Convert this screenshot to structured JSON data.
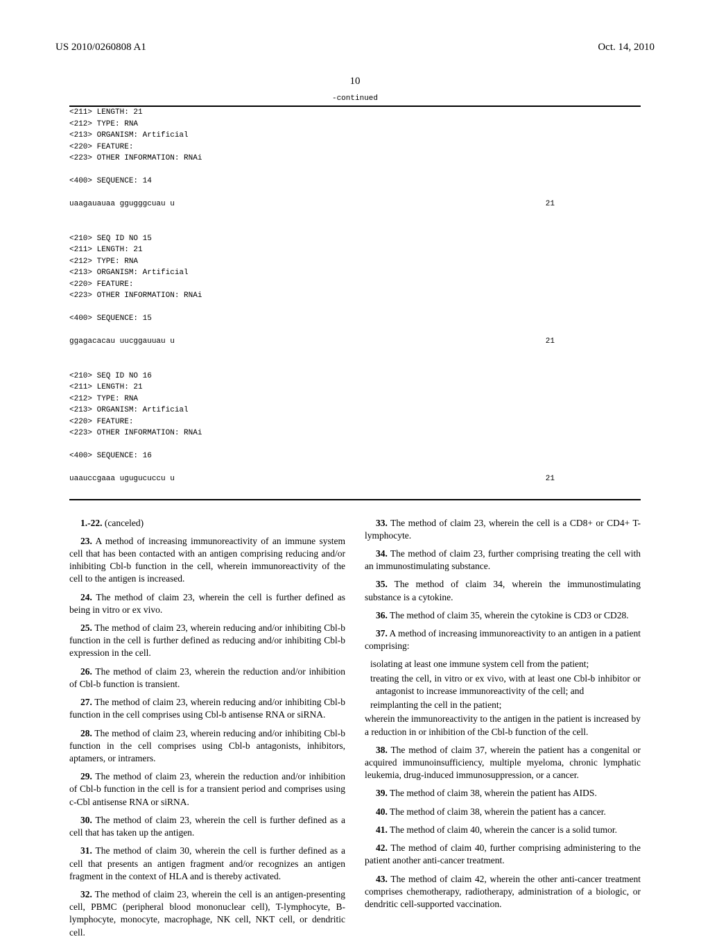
{
  "header": {
    "docnum": "US 2010/0260808 A1",
    "date": "Oct. 14, 2010"
  },
  "page_number": "10",
  "continued_label": "-continued",
  "sequences": [
    {
      "meta": [
        "<211> LENGTH: 21",
        "<212> TYPE: RNA",
        "<213> ORGANISM: Artificial",
        "<220> FEATURE:",
        "<223> OTHER INFORMATION: RNAi"
      ],
      "seq_header": "<400> SEQUENCE: 14",
      "seq_text": "uaagauauaa ggugggcuau u",
      "seq_len": "21"
    },
    {
      "meta": [
        "<210> SEQ ID NO 15",
        "<211> LENGTH: 21",
        "<212> TYPE: RNA",
        "<213> ORGANISM: Artificial",
        "<220> FEATURE:",
        "<223> OTHER INFORMATION: RNAi"
      ],
      "seq_header": "<400> SEQUENCE: 15",
      "seq_text": "ggagacacau uucggauuau u",
      "seq_len": "21"
    },
    {
      "meta": [
        "<210> SEQ ID NO 16",
        "<211> LENGTH: 21",
        "<212> TYPE: RNA",
        "<213> ORGANISM: Artificial",
        "<220> FEATURE:",
        "<223> OTHER INFORMATION: RNAi"
      ],
      "seq_header": "<400> SEQUENCE: 16",
      "seq_text": "uaauccgaaa ugugucuccu u",
      "seq_len": "21"
    }
  ],
  "claims": {
    "c1": {
      "num": "1.-22.",
      "text": "(canceled)"
    },
    "c23": {
      "num": "23.",
      "text": "A method of increasing immunoreactivity of an immune system cell that has been contacted with an antigen comprising reducing and/or inhibiting Cbl-b function in the cell, wherein immunoreactivity of the cell to the antigen is increased."
    },
    "c24": {
      "num": "24.",
      "text": "The method of claim 23, wherein the cell is further defined as being in vitro or ex vivo."
    },
    "c25": {
      "num": "25.",
      "text": "The method of claim 23, wherein reducing and/or inhibiting Cbl-b function in the cell is further defined as reducing and/or inhibiting Cbl-b expression in the cell."
    },
    "c26": {
      "num": "26.",
      "text": "The method of claim 23, wherein the reduction and/or inhibition of Cbl-b function is transient."
    },
    "c27": {
      "num": "27.",
      "text": "The method of claim 23, wherein reducing and/or inhibiting Cbl-b function in the cell comprises using Cbl-b antisense RNA or siRNA."
    },
    "c28": {
      "num": "28.",
      "text": "The method of claim 23, wherein reducing and/or inhibiting Cbl-b function in the cell comprises using Cbl-b antagonists, inhibitors, aptamers, or intramers."
    },
    "c29": {
      "num": "29.",
      "text": "The method of claim 23, wherein the reduction and/or inhibition of Cbl-b function in the cell is for a transient period and comprises using c-Cbl antisense RNA or siRNA."
    },
    "c30": {
      "num": "30.",
      "text": "The method of claim 23, wherein the cell is further defined as a cell that has taken up the antigen."
    },
    "c31": {
      "num": "31.",
      "text": "The method of claim 30, wherein the cell is further defined as a cell that presents an antigen fragment and/or recognizes an antigen fragment in the context of HLA and is thereby activated."
    },
    "c32": {
      "num": "32.",
      "text": "The method of claim 23, wherein the cell is an antigen-presenting cell, PBMC (peripheral blood mononuclear cell), T-lymphocyte, B-lymphocyte, monocyte, macrophage, NK cell, NKT cell, or dendritic cell."
    },
    "c33": {
      "num": "33.",
      "text": "The method of claim 23, wherein the cell is a CD8+ or CD4+ T-lymphocyte."
    },
    "c34": {
      "num": "34.",
      "text": "The method of claim 23, further comprising treating the cell with an immunostimulating substance."
    },
    "c35": {
      "num": "35.",
      "text": "The method of claim 34, wherein the immunostimulating substance is a cytokine."
    },
    "c36": {
      "num": "36.",
      "text": "The method of claim 35, wherein the cytokine is CD3 or CD28."
    },
    "c37": {
      "num": "37.",
      "intro": "A method of increasing immunoreactivity to an antigen in a patient comprising:",
      "sub1": "isolating at least one immune system cell from the patient;",
      "sub2": "treating the cell, in vitro or ex vivo, with at least one Cbl-b inhibitor or antagonist to increase immunoreactivity of the cell; and",
      "sub3": "reimplanting the cell in the patient;",
      "tail": "wherein the immunoreactivity to the antigen in the patient is increased by a reduction in or inhibition of the Cbl-b function of the cell."
    },
    "c38": {
      "num": "38.",
      "text": "The method of claim 37, wherein the patient has a congenital or acquired immunoinsufficiency, multiple myeloma, chronic lymphatic leukemia, drug-induced immunosuppression, or a cancer."
    },
    "c39": {
      "num": "39.",
      "text": "The method of claim 38, wherein the patient has AIDS."
    },
    "c40": {
      "num": "40.",
      "text": "The method of claim 38, wherein the patient has a cancer."
    },
    "c41": {
      "num": "41.",
      "text": "The method of claim 40, wherein the cancer is a solid tumor."
    },
    "c42": {
      "num": "42.",
      "text": "The method of claim 40, further comprising administering to the patient another anti-cancer treatment."
    },
    "c43": {
      "num": "43.",
      "text": "The method of claim 42, wherein the other anti-cancer treatment comprises chemotherapy, radiotherapy, administration of a biologic, or dendritic cell-supported vaccination."
    }
  }
}
